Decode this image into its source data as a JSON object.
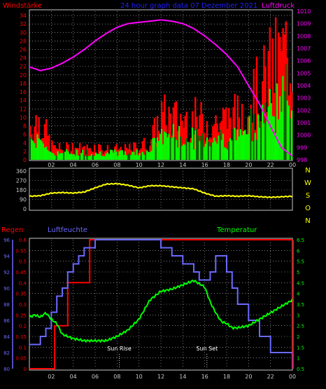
{
  "header": {
    "wind_title": "Windstärke",
    "date_title": "24 hour graph data  07 Dezember 2021",
    "pressure_title": "Luftdruck"
  },
  "x_ticks": [
    "02",
    "04",
    "06",
    "08",
    "10",
    "12",
    "14",
    "16",
    "18",
    "20",
    "22",
    "00"
  ],
  "colors": {
    "background": "#000000",
    "panel_border": "#c8c8c8",
    "grid": "#c8c8c8",
    "wind_gust": "#ff0000",
    "wind_avg": "#00ff00",
    "wind_dark": "#006400",
    "pressure": "#ff00ff",
    "direction": "#ffff00",
    "rain": "#ff0000",
    "humidity": "#6a6aff",
    "temperature": "#00ff00",
    "axis_right_top": "#ff00ff",
    "axis_hum": "#6a6aff",
    "axis_temp": "#00ff00",
    "title_blue": "#2020ff"
  },
  "chart_data": [
    {
      "type": "bar",
      "title": "Windstärke",
      "ylabel": "Windstärke",
      "ylim": [
        0,
        35
      ],
      "yticks": [
        0,
        2,
        4,
        6,
        8,
        10,
        12,
        14,
        16,
        18,
        20,
        22,
        24,
        26,
        28,
        30,
        32,
        34
      ],
      "secondary_axis": {
        "label": "Luftdruck",
        "ylim": [
          998,
          1010
        ],
        "ticks": [
          998,
          999,
          1000,
          1001,
          1002,
          1003,
          1004,
          1005,
          1006,
          1007,
          1008,
          1009,
          1010
        ]
      },
      "series": [
        {
          "name": "gust",
          "hours": [
            0,
            1,
            2,
            3,
            4,
            5,
            6,
            7,
            8,
            9,
            10,
            11,
            12,
            13,
            14,
            15,
            16,
            17,
            18,
            19,
            20,
            21,
            22,
            23,
            24
          ],
          "values": [
            10,
            12,
            4,
            3,
            4,
            3,
            4,
            3,
            3,
            3,
            4,
            5,
            13,
            12,
            12,
            12,
            11,
            11,
            12,
            13,
            18,
            20,
            26,
            30,
            32
          ]
        },
        {
          "name": "avg",
          "hours": [
            0,
            1,
            2,
            3,
            4,
            5,
            6,
            7,
            8,
            9,
            10,
            11,
            12,
            13,
            14,
            15,
            16,
            17,
            18,
            19,
            20,
            21,
            22,
            23,
            24
          ],
          "values": [
            6,
            6,
            2,
            2,
            2,
            2,
            2,
            2,
            2,
            2,
            2,
            3,
            7,
            7,
            6,
            6,
            6,
            6,
            6,
            7,
            10,
            12,
            14,
            17,
            18
          ]
        },
        {
          "name": "pressure",
          "hours": [
            0,
            1,
            2,
            3,
            4,
            5,
            6,
            7,
            8,
            9,
            10,
            11,
            12,
            13,
            14,
            15,
            16,
            17,
            18,
            19,
            20,
            21,
            22,
            23,
            24
          ],
          "values": [
            1005.5,
            1005.2,
            1005.4,
            1005.8,
            1006.3,
            1006.9,
            1007.6,
            1008.2,
            1008.7,
            1009.0,
            1009.1,
            1009.2,
            1009.3,
            1009.2,
            1009.0,
            1008.6,
            1008.0,
            1007.3,
            1006.5,
            1005.5,
            1004.0,
            1002.5,
            1000.7,
            999.0,
            998.3
          ]
        }
      ]
    },
    {
      "type": "line",
      "title": "",
      "ylim": [
        0,
        360
      ],
      "yticks": [
        0,
        90,
        180,
        270,
        360
      ],
      "right_labels": [
        "N",
        "W",
        "S",
        "O",
        "N"
      ],
      "series": [
        {
          "name": "direction",
          "hours": [
            0,
            1,
            2,
            3,
            4,
            5,
            6,
            7,
            8,
            9,
            10,
            11,
            12,
            13,
            14,
            15,
            16,
            17,
            18,
            19,
            20,
            21,
            22,
            23,
            24
          ],
          "values": [
            120,
            125,
            150,
            155,
            150,
            160,
            200,
            235,
            240,
            225,
            200,
            220,
            220,
            210,
            200,
            190,
            150,
            120,
            125,
            120,
            125,
            115,
            110,
            115,
            120
          ]
        }
      ]
    },
    {
      "type": "line",
      "title": "Regen / Luftfeuchte / Temperatur",
      "axes": {
        "rain": {
          "label": "Regen",
          "ylim": [
            0,
            0.6
          ],
          "ticks": [
            0,
            0.05,
            0.1,
            0.15,
            0.2,
            0.25,
            0.3,
            0.35,
            0.4,
            0.45,
            0.5,
            0.55,
            0.6
          ]
        },
        "humidity": {
          "label": "Luftfeuchte",
          "ylim": [
            80,
            96
          ],
          "ticks": [
            80,
            82,
            84,
            86,
            88,
            90,
            92,
            94,
            96
          ]
        },
        "temperature": {
          "label": "Temperatur",
          "ylim": [
            0.5,
            6.5
          ],
          "ticks": [
            0.5,
            1,
            1.5,
            2,
            2.5,
            3,
            3.5,
            4,
            4.5,
            5,
            5.5,
            6,
            6.5
          ]
        }
      },
      "series": [
        {
          "name": "rain",
          "hours": [
            0,
            2.3,
            3.5,
            5.5,
            24
          ],
          "values": [
            0,
            0.2,
            0.4,
            0.6,
            0.6
          ]
        },
        {
          "name": "humidity",
          "hours": [
            0,
            1,
            1.5,
            2,
            2.5,
            3,
            3.5,
            4,
            4.5,
            5,
            6,
            7,
            8,
            9,
            10,
            11,
            12,
            13,
            14,
            15,
            15.5,
            16,
            16.5,
            17,
            17.5,
            18,
            18.5,
            19,
            20,
            21,
            22,
            23,
            24
          ],
          "values": [
            83,
            84,
            85,
            87,
            89,
            90,
            92,
            93,
            94,
            95,
            96,
            96,
            96,
            96,
            96,
            96,
            95,
            94,
            93,
            92,
            91,
            91,
            92,
            94,
            94,
            92,
            90,
            88,
            86,
            84,
            82,
            82,
            80
          ]
        },
        {
          "name": "temperature",
          "hours": [
            0,
            0.5,
            1,
            1.5,
            2,
            2.5,
            3,
            4,
            5,
            6,
            7,
            8,
            9,
            10,
            11,
            12,
            13,
            14,
            15,
            16,
            16.5,
            17,
            17.5,
            18,
            18.5,
            19,
            20,
            21,
            22,
            23,
            24
          ],
          "values": [
            2.9,
            3.0,
            2.9,
            3.1,
            2.8,
            2.6,
            2.1,
            1.9,
            1.8,
            1.8,
            1.8,
            2.0,
            2.3,
            2.8,
            3.7,
            4.1,
            4.2,
            4.4,
            4.6,
            4.3,
            3.6,
            3.1,
            2.7,
            2.6,
            2.4,
            2.4,
            2.5,
            2.8,
            3.1,
            3.4,
            3.7
          ]
        }
      ],
      "annotations": [
        {
          "label": "Sun Rise",
          "hour": 8.2
        },
        {
          "label": "Sun Set",
          "hour": 16.2
        }
      ]
    }
  ]
}
